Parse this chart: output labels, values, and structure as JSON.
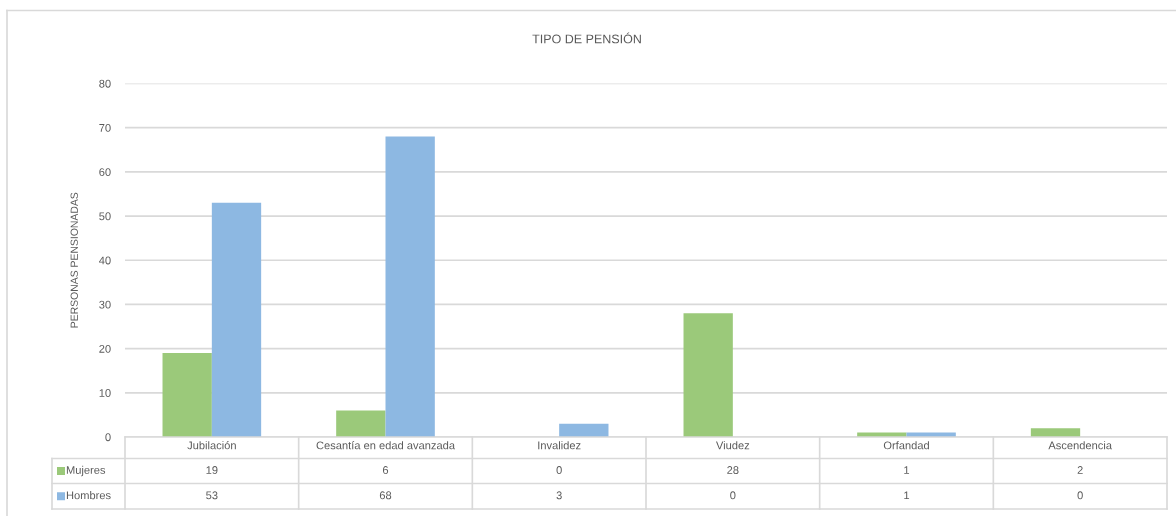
{
  "chart_data": {
    "type": "bar",
    "title": "TIPO DE PENSIÓN",
    "ylabel": "PERSONAS PENSIONADAS",
    "categories": [
      "Jubilación",
      "Cesantía en edad avanzada",
      "Invalidez",
      "Viudez",
      "Orfandad",
      "Ascendencia"
    ],
    "series": [
      {
        "name": "Mujeres",
        "color": "#9bc97a",
        "values": [
          19,
          6,
          0,
          28,
          1,
          2
        ]
      },
      {
        "name": "Hombres",
        "color": "#8db8e2",
        "values": [
          53,
          68,
          3,
          0,
          1,
          0
        ]
      }
    ],
    "ylim": [
      0,
      80
    ],
    "yticks": [
      0,
      10,
      20,
      30,
      40,
      50,
      60,
      70,
      80
    ],
    "grid": "y",
    "legend": "bottom",
    "data_labels": true
  }
}
